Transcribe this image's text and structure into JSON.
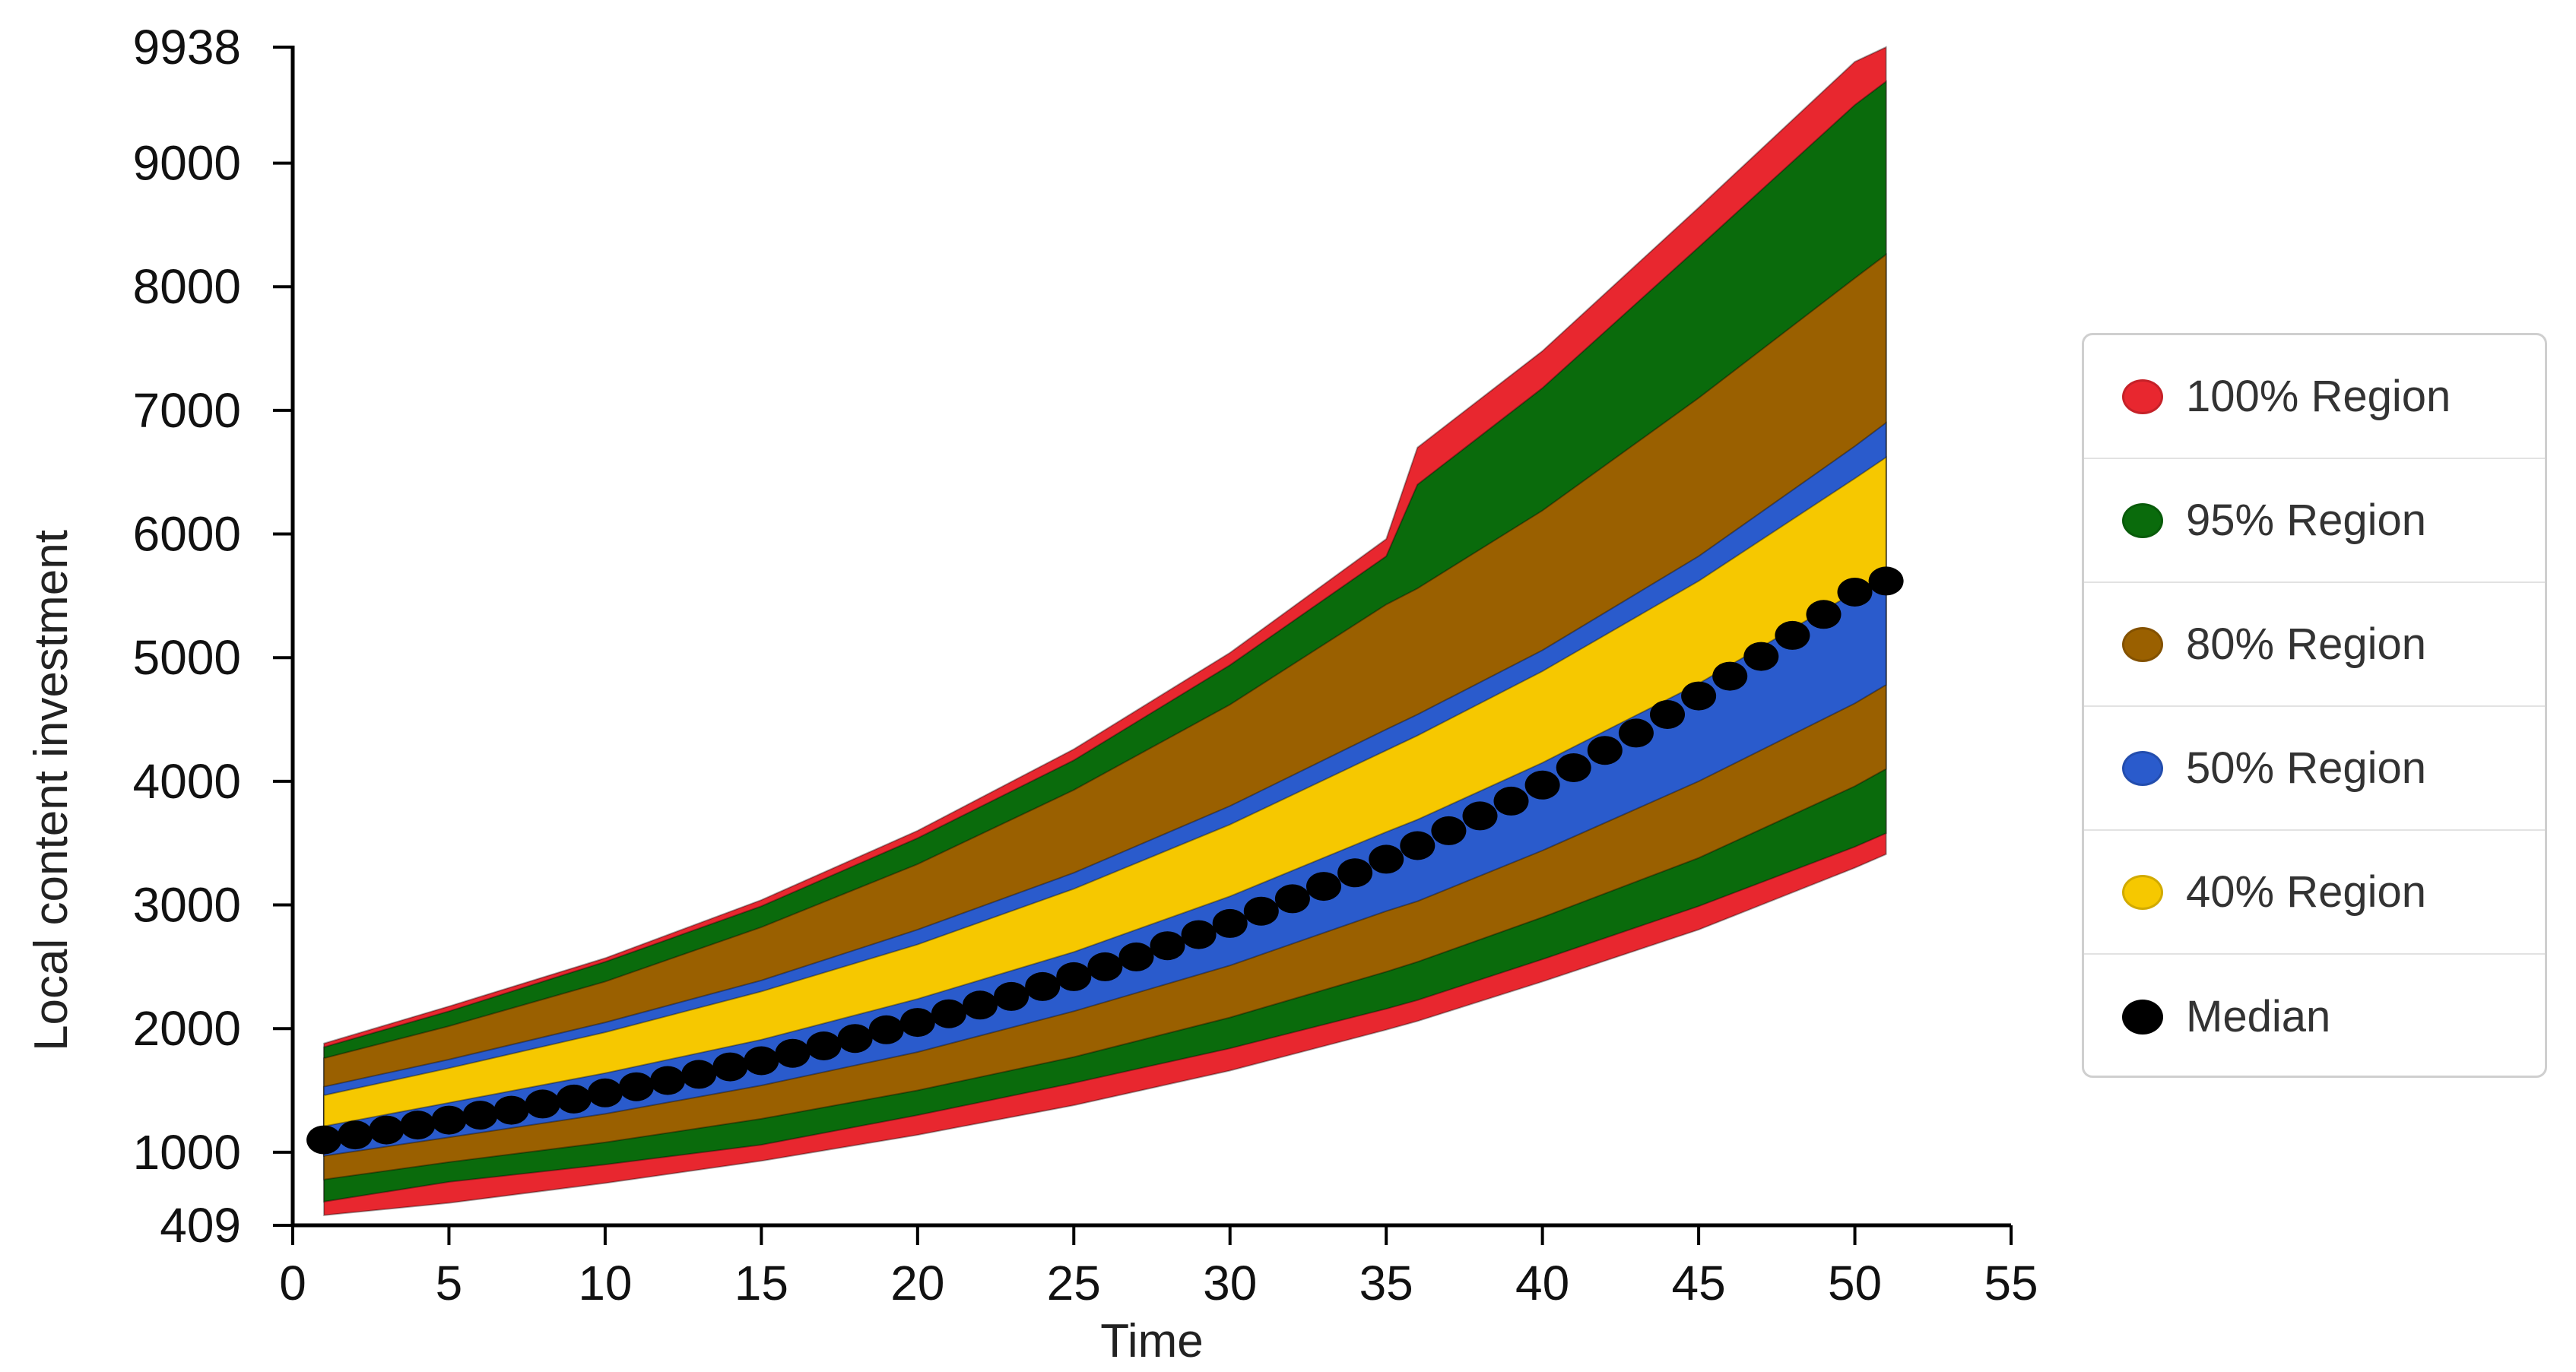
{
  "chart_data": {
    "type": "area",
    "title": "",
    "xlabel": "Time",
    "ylabel": "Local content investment",
    "xlim": [
      0,
      55
    ],
    "ylim": [
      409,
      9938
    ],
    "x_ticks": [
      "0",
      "5",
      "10",
      "15",
      "20",
      "25",
      "30",
      "35",
      "40",
      "45",
      "50",
      "55"
    ],
    "y_ticks": [
      "409",
      "1000",
      "2000",
      "3000",
      "4000",
      "5000",
      "6000",
      "7000",
      "8000",
      "9000",
      "9938"
    ],
    "x": [
      1,
      5,
      10,
      15,
      20,
      25,
      30,
      35,
      36,
      40,
      45,
      50,
      51
    ],
    "bands": [
      {
        "name": "100% Region",
        "color": "#e8272f",
        "lower": [
          490,
          590,
          750,
          930,
          1140,
          1380,
          1660,
          1990,
          2060,
          2380,
          2800,
          3300,
          3410
        ],
        "upper": [
          1880,
          2180,
          2570,
          3040,
          3600,
          4260,
          5040,
          5960,
          6700,
          7480,
          8640,
          9820,
          9938
        ]
      },
      {
        "name": "95% Region",
        "color": "#0a6b0c",
        "lower": [
          600,
          760,
          900,
          1060,
          1300,
          1560,
          1840,
          2160,
          2230,
          2560,
          2990,
          3470,
          3580
        ],
        "upper": [
          1850,
          2140,
          2540,
          2990,
          3540,
          4170,
          4940,
          5820,
          6400,
          7180,
          8320,
          9470,
          9660
        ]
      },
      {
        "name": "80% Region",
        "color": "#9a6000",
        "lower": [
          780,
          920,
          1080,
          1270,
          1500,
          1770,
          2090,
          2460,
          2540,
          2900,
          3380,
          3960,
          4100
        ],
        "upper": [
          1760,
          2020,
          2380,
          2820,
          3330,
          3930,
          4620,
          5430,
          5560,
          6190,
          7100,
          8070,
          8260
        ]
      },
      {
        "name": "50% Region",
        "color": "#2a5bcc",
        "lower": [
          970,
          1120,
          1310,
          1540,
          1810,
          2140,
          2510,
          2950,
          3030,
          3440,
          4000,
          4630,
          4780
        ],
        "upper": [
          1530,
          1750,
          2050,
          2390,
          2800,
          3260,
          3800,
          4420,
          4540,
          5060,
          5820,
          6710,
          6900
        ]
      },
      {
        "name": "40% Region",
        "color": "#f6c800",
        "lower": [
          1210,
          1400,
          1640,
          1910,
          2240,
          2620,
          3070,
          3590,
          3690,
          4150,
          4790,
          5530,
          5680
        ],
        "upper": [
          1460,
          1680,
          1970,
          2300,
          2680,
          3130,
          3650,
          4250,
          4370,
          4890,
          5620,
          6450,
          6620
        ]
      }
    ],
    "median": {
      "name": "Median",
      "x": [
        1,
        2,
        3,
        4,
        5,
        6,
        7,
        8,
        9,
        10,
        11,
        12,
        13,
        14,
        15,
        16,
        17,
        18,
        19,
        20,
        21,
        22,
        23,
        24,
        25,
        26,
        27,
        28,
        29,
        30,
        31,
        32,
        33,
        34,
        35,
        36,
        37,
        38,
        39,
        40,
        41,
        42,
        43,
        44,
        45,
        46,
        47,
        48,
        49,
        50,
        51
      ],
      "values": [
        1100,
        1140,
        1180,
        1220,
        1260,
        1300,
        1340,
        1390,
        1430,
        1480,
        1530,
        1580,
        1630,
        1690,
        1740,
        1800,
        1860,
        1920,
        1990,
        2050,
        2120,
        2190,
        2260,
        2340,
        2420,
        2500,
        2580,
        2670,
        2760,
        2850,
        2950,
        3050,
        3150,
        3260,
        3370,
        3480,
        3600,
        3720,
        3840,
        3970,
        4110,
        4250,
        4390,
        4540,
        4690,
        4850,
        5010,
        5180,
        5350,
        5530,
        5620
      ]
    },
    "legend_position": "right",
    "grid": false
  },
  "legend": {
    "items": [
      {
        "label": "100% Region",
        "color": "#e8272f"
      },
      {
        "label": "95% Region",
        "color": "#0a6b0c"
      },
      {
        "label": "80% Region",
        "color": "#9a6000"
      },
      {
        "label": "50% Region",
        "color": "#2a5bcc"
      },
      {
        "label": "40% Region",
        "color": "#f6c800"
      },
      {
        "label": "Median",
        "color": "#000000"
      }
    ]
  }
}
